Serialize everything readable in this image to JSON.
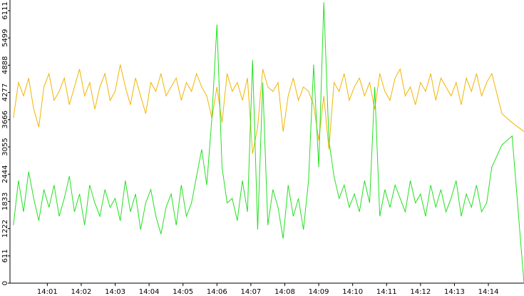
{
  "chart_data": {
    "type": "line",
    "x": [
      0,
      0.15,
      0.3,
      0.45,
      0.6,
      0.75,
      0.9,
      1.05,
      1.2,
      1.35,
      1.5,
      1.65,
      1.8,
      1.95,
      2.1,
      2.25,
      2.4,
      2.55,
      2.7,
      2.85,
      3,
      3.15,
      3.3,
      3.45,
      3.6,
      3.75,
      3.9,
      4.05,
      4.2,
      4.35,
      4.5,
      4.65,
      4.8,
      4.95,
      5.1,
      5.25,
      5.4,
      5.55,
      5.7,
      5.85,
      6,
      6.15,
      6.3,
      6.45,
      6.6,
      6.75,
      6.9,
      7.05,
      7.2,
      7.35,
      7.5,
      7.65,
      7.8,
      7.95,
      8.1,
      8.25,
      8.4,
      8.55,
      8.7,
      8.85,
      9,
      9.15,
      9.3,
      9.45,
      9.6,
      9.75,
      9.9,
      10.05,
      10.2,
      10.35,
      10.5,
      10.65,
      10.8,
      10.95,
      11.1,
      11.25,
      11.4,
      11.55,
      11.7,
      11.85,
      12,
      12.15,
      12.3,
      12.45,
      12.6,
      12.75,
      12.9,
      13.05,
      13.2,
      13.35,
      13.5,
      13.65,
      13.8,
      13.95,
      14.1,
      14.4,
      14.7,
      15.05
    ],
    "series": [
      {
        "color": "#f2b400",
        "values": [
          3700,
          4500,
          4200,
          4600,
          3900,
          3500,
          4400,
          4700,
          4100,
          4300,
          4600,
          4000,
          4400,
          4800,
          4200,
          4500,
          3900,
          4400,
          4700,
          4100,
          4300,
          4900,
          4400,
          4000,
          4600,
          4200,
          3800,
          4500,
          4300,
          4700,
          4200,
          4400,
          4600,
          4100,
          4500,
          4300,
          4700,
          4400,
          4200,
          3700,
          4400,
          3600,
          4700,
          4300,
          4500,
          4100,
          4600,
          2900,
          3500,
          4800,
          4400,
          4300,
          4500,
          3400,
          4200,
          4600,
          4100,
          4400,
          4300,
          4000,
          3200,
          4200,
          3000,
          4500,
          4300,
          4700,
          4100,
          4400,
          4600,
          4200,
          4500,
          3900,
          4700,
          4300,
          4100,
          4600,
          4800,
          4200,
          4400,
          4000,
          4500,
          4300,
          4700,
          4100,
          4600,
          4400,
          4200,
          4500,
          4000,
          4600,
          4300,
          4700,
          4200,
          4500,
          4700,
          3800,
          3600,
          3400
        ]
      },
      {
        "color": "#22e01e",
        "values": [
          1300,
          2300,
          1600,
          2500,
          1900,
          1400,
          2100,
          1700,
          2200,
          1500,
          1900,
          2400,
          1600,
          2000,
          1300,
          2200,
          1800,
          1500,
          2100,
          1700,
          1900,
          1400,
          2300,
          1600,
          2000,
          1200,
          1800,
          2100,
          1500,
          1100,
          1700,
          2000,
          1300,
          2200,
          1500,
          1800,
          2400,
          3000,
          2200,
          3700,
          5800,
          2600,
          1800,
          1900,
          1400,
          2300,
          1600,
          5000,
          1200,
          4500,
          1300,
          2100,
          1700,
          1000,
          2200,
          1500,
          1900,
          1200,
          2300,
          4900,
          2600,
          6300,
          3200,
          2400,
          1900,
          2200,
          1700,
          2000,
          1600,
          2300,
          1800,
          4400,
          1500,
          2100,
          1700,
          2200,
          1900,
          1600,
          2300,
          1800,
          2000,
          1500,
          2200,
          1700,
          2100,
          1600,
          1900,
          2300,
          1500,
          2000,
          1700,
          2200,
          1600,
          1800,
          2600,
          3100,
          3300,
          0
        ]
      }
    ],
    "xlim": [
      -0.1,
      15.05
    ],
    "xticks": [
      {
        "value": 1,
        "label": "14:01"
      },
      {
        "value": 2,
        "label": "14:02"
      },
      {
        "value": 3,
        "label": "14:03"
      },
      {
        "value": 4,
        "label": "14:04"
      },
      {
        "value": 5,
        "label": "14:05"
      },
      {
        "value": 6,
        "label": "14:06"
      },
      {
        "value": 7,
        "label": "14:07"
      },
      {
        "value": 8,
        "label": "14:08"
      },
      {
        "value": 9,
        "label": "14:09"
      },
      {
        "value": 10,
        "label": "14:10"
      },
      {
        "value": 11,
        "label": "14:11"
      },
      {
        "value": 12,
        "label": "14:12"
      },
      {
        "value": 13,
        "label": "14:13"
      },
      {
        "value": 14,
        "label": "14:14"
      }
    ],
    "ylim": [
      0,
      6350
    ],
    "yticks": [
      0,
      611,
      1222,
      1833,
      2444,
      3055,
      3666,
      4277,
      4888,
      5499,
      6111
    ]
  }
}
